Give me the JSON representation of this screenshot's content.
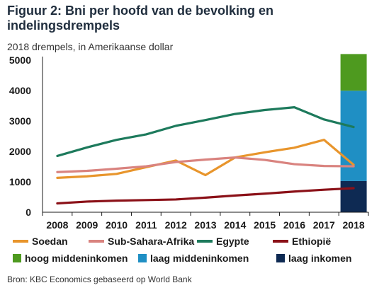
{
  "header": {
    "title": "Figuur 2: Bni per hoofd van de bevolking en indelingsdrempels",
    "subtitle": "2018 drempels, in Amerikaanse dollar"
  },
  "footer": {
    "source": "Bron: KBC Economics gebaseerd op World Bank"
  },
  "chart_data": {
    "type": "line",
    "x": [
      "2008",
      "2009",
      "2010",
      "2011",
      "2012",
      "2013",
      "2014",
      "2015",
      "2016",
      "2017",
      "2018"
    ],
    "ylim": [
      0,
      5000
    ],
    "yticks": [
      0,
      1000,
      2000,
      3000,
      4000,
      5000
    ],
    "grid": false,
    "legend_position": "bottom",
    "series": [
      {
        "name": "Soedan",
        "color": "#e8952c",
        "values": [
          1130,
          1180,
          1260,
          1480,
          1700,
          1220,
          1800,
          1970,
          2120,
          2380,
          1560
        ]
      },
      {
        "name": "Sub-Sahara-Afrika",
        "color": "#d9837f",
        "values": [
          1320,
          1360,
          1430,
          1510,
          1650,
          1730,
          1800,
          1720,
          1580,
          1520,
          1510
        ]
      },
      {
        "name": "Egypte",
        "color": "#1d7a5c",
        "values": [
          1850,
          2130,
          2380,
          2560,
          2840,
          3030,
          3230,
          3360,
          3450,
          3050,
          2800
        ]
      },
      {
        "name": "Ethiopië",
        "color": "#8b1118",
        "values": [
          290,
          350,
          380,
          400,
          420,
          480,
          550,
          610,
          680,
          740,
          790
        ]
      }
    ],
    "thresholds": {
      "category": "2018",
      "bands": [
        {
          "name": "laag inkomen",
          "color": "#0e2a53",
          "from": 0,
          "to": 1025
        },
        {
          "name": "laag middeninkomen",
          "color": "#1f8fc4",
          "from": 1025,
          "to": 3995
        },
        {
          "name": "hoog middeninkomen",
          "color": "#4e9a1f",
          "from": 3995,
          "to": 12375
        }
      ]
    },
    "legend": [
      {
        "label": "Soedan",
        "color": "#e8952c",
        "kind": "line"
      },
      {
        "label": "Sub-Sahara-Afrika",
        "color": "#d9837f",
        "kind": "line"
      },
      {
        "label": "Egypte",
        "color": "#1d7a5c",
        "kind": "line"
      },
      {
        "label": "Ethiopië",
        "color": "#8b1118",
        "kind": "line"
      },
      {
        "label": "hoog middeninkomen",
        "color": "#4e9a1f",
        "kind": "box"
      },
      {
        "label": "laag middeninkomen",
        "color": "#1f8fc4",
        "kind": "box"
      },
      {
        "label": "laag inkomen",
        "color": "#0e2a53",
        "kind": "box"
      }
    ]
  }
}
